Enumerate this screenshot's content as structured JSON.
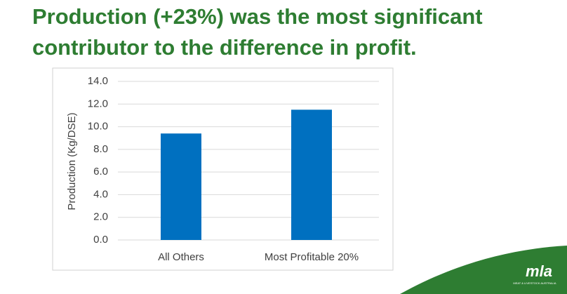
{
  "chart_data": {
    "type": "bar",
    "title": "Production (+23%) was the most significant contributor to the difference in profit.",
    "y_label": "Production (Kg/DSE)",
    "categories": [
      "All Others",
      "Most Profitable 20%"
    ],
    "values": [
      9.4,
      11.5
    ],
    "color": "#0070c0",
    "ylim": [
      0,
      14
    ],
    "yticks": [
      {
        "value": 0,
        "label": "0.0"
      },
      {
        "value": 2,
        "label": "2.0"
      },
      {
        "value": 4,
        "label": "4.0"
      },
      {
        "value": 6,
        "label": "6.0"
      },
      {
        "value": 8,
        "label": "8.0"
      },
      {
        "value": 10,
        "label": "10.0"
      },
      {
        "value": 12,
        "label": "12.0"
      },
      {
        "value": 14,
        "label": "14.0"
      }
    ],
    "grid": true
  },
  "logo": {
    "name": "mla",
    "tagline": "MEAT & LIVESTOCK AUSTRALIA"
  }
}
